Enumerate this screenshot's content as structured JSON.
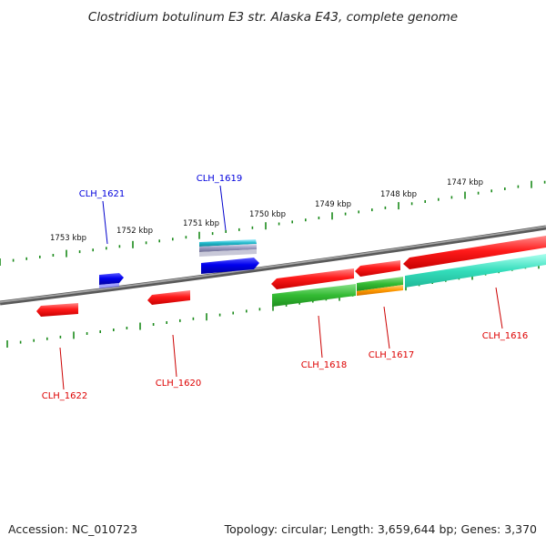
{
  "title": "Clostridium botulinum E3 str. Alaska E43, complete genome",
  "scale_labels": [
    "1753 kbp",
    "1752 kbp",
    "1751 kbp",
    "1750 kbp",
    "1749 kbp",
    "1748 kbp",
    "1747 kbp"
  ],
  "genes": [
    {
      "label": "CLH_1621",
      "strand": "+",
      "color": "#0000dd"
    },
    {
      "label": "CLH_1619",
      "strand": "+",
      "color": "#0000dd"
    },
    {
      "label": "CLH_1622",
      "strand": "-",
      "color": "#ff0000"
    },
    {
      "label": "CLH_1620",
      "strand": "-",
      "color": "#ff0000"
    },
    {
      "label": "CLH_1618",
      "strand": "-",
      "color": "#ff0000"
    },
    {
      "label": "CLH_1617",
      "strand": "-",
      "color": "#ff0000"
    },
    {
      "label": "CLH_1616",
      "strand": "-",
      "color": "#ff0000"
    }
  ],
  "footer": {
    "accession": "Accession: NC_010723",
    "topology": "Topology: circular; Length: 3,659,644 bp; Genes: 3,370"
  },
  "colors": {
    "backbone": "#7a7a7a",
    "tick": "#1a8a1a",
    "forward_gene": "#0000dd",
    "reverse_gene": "#ff0000",
    "cds_green": "#33bb33",
    "cds_cyan": "#33ddbb",
    "cds_orange": "#ff9900"
  }
}
